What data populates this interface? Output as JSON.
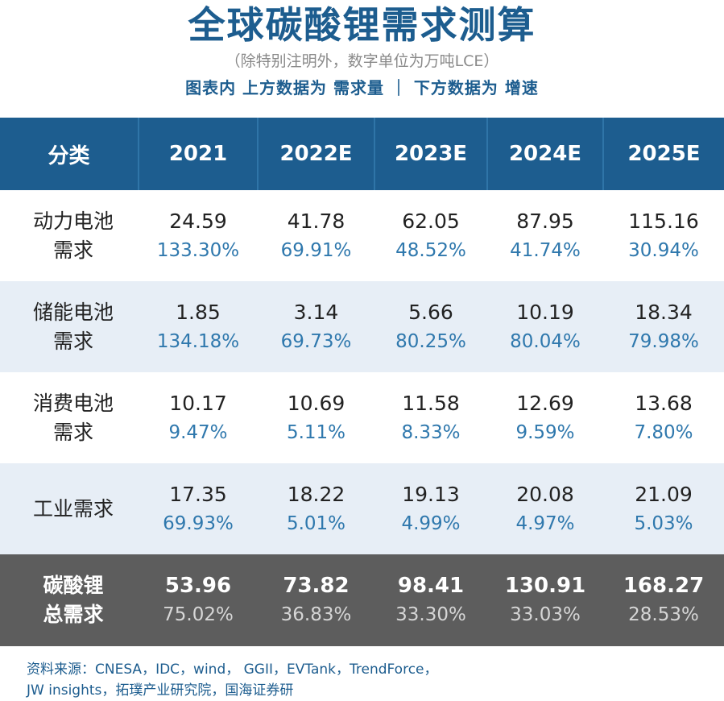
{
  "header": {
    "title": "全球碳酸锂需求测算",
    "subtitle": "（除特别注明外，数字单位为万吨LCE）",
    "legend_note": "图表内 上方数据为 需求量 ｜ 下方数据为 增速"
  },
  "chart_data": {
    "type": "table",
    "title": "全球碳酸锂需求测算",
    "unit": "万吨LCE",
    "columns": [
      "分类",
      "2021",
      "2022E",
      "2023E",
      "2024E",
      "2025E"
    ],
    "rows": [
      {
        "category_line1": "动力电池",
        "category_line2": "需求",
        "values": [
          "24.59",
          "41.78",
          "62.05",
          "87.95",
          "115.16"
        ],
        "growth": [
          "133.30%",
          "69.91%",
          "48.52%",
          "41.74%",
          "30.94%"
        ]
      },
      {
        "category_line1": "储能电池",
        "category_line2": "需求",
        "values": [
          "1.85",
          "3.14",
          "5.66",
          "10.19",
          "18.34"
        ],
        "growth": [
          "134.18%",
          "69.73%",
          "80.25%",
          "80.04%",
          "79.98%"
        ]
      },
      {
        "category_line1": "消费电池",
        "category_line2": "需求",
        "values": [
          "10.17",
          "10.69",
          "11.58",
          "12.69",
          "13.68"
        ],
        "growth": [
          "9.47%",
          "5.11%",
          "8.33%",
          "9.59%",
          "7.80%"
        ]
      },
      {
        "category_line1": "工业需求",
        "category_line2": "",
        "values": [
          "17.35",
          "18.22",
          "19.13",
          "20.08",
          "21.09"
        ],
        "growth": [
          "69.93%",
          "5.01%",
          "4.99%",
          "4.97%",
          "5.03%"
        ]
      },
      {
        "category_line1": "碳酸锂",
        "category_line2": "总需求",
        "values": [
          "53.96",
          "73.82",
          "98.41",
          "130.91",
          "168.27"
        ],
        "growth": [
          "75.02%",
          "36.83%",
          "33.30%",
          "33.03%",
          "28.53%"
        ]
      }
    ]
  },
  "footer": {
    "source_line1": "资料来源：CNESA，IDC，wind， GGII，EVTank，TrendForce，",
    "source_line2": "JW insights，拓璞产业研究院，国海证券研"
  },
  "colors": {
    "header_blue": "#1d5d8f",
    "row_tint": "#e7eef6",
    "total_row": "#5d5d5d",
    "growth_blue": "#2f78ad"
  }
}
